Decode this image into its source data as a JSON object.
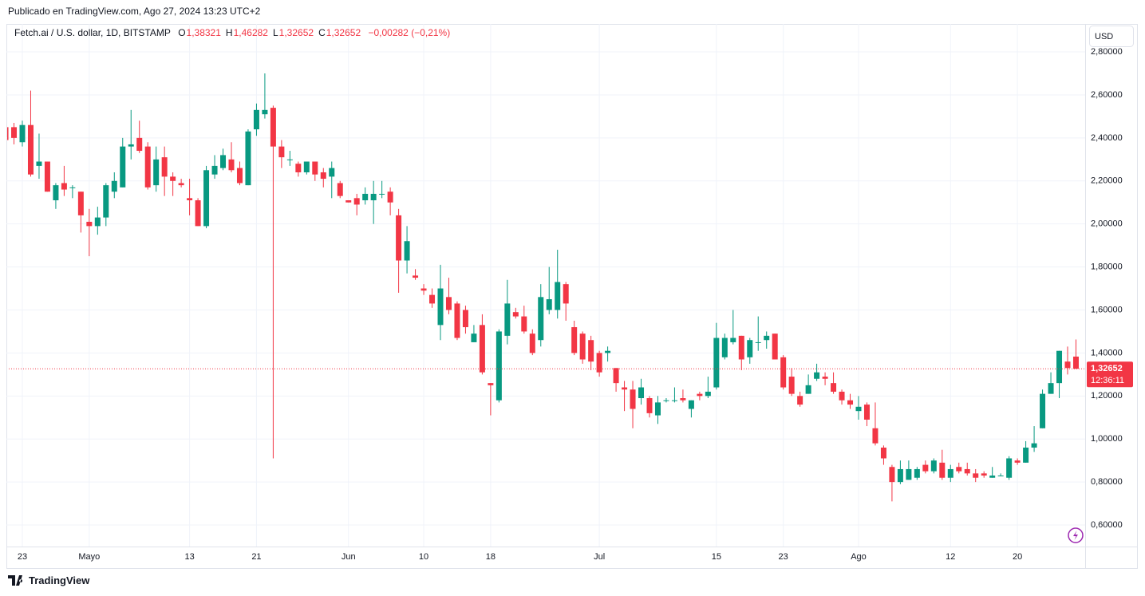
{
  "header": {
    "published": "Publicado en TradingView.com, Ago 27, 2024 13:23 UTC+2"
  },
  "footer": {
    "brand": "TradingView"
  },
  "chart_data": {
    "type": "candlestick",
    "title": "Fetch.ai / U.S. dollar, 1D, BITSTAMP",
    "ohlc_legend": [
      {
        "key": "O",
        "value": "1,38321"
      },
      {
        "key": "H",
        "value": "1,46282"
      },
      {
        "key": "L",
        "value": "1,32652"
      },
      {
        "key": "C",
        "value": "1,32652"
      }
    ],
    "change": "−0,00282 (−0,21%)",
    "currency": "USD",
    "last_price_label": "1,32652",
    "countdown": "12:36:11",
    "up_color": "#089981",
    "down_color": "#f23645",
    "grid": true,
    "ylim": [
      0.5,
      2.93
    ],
    "yticks": [
      {
        "value": 0.6,
        "label": "0,60000"
      },
      {
        "value": 0.8,
        "label": "0,80000"
      },
      {
        "value": 1.0,
        "label": "1,00000"
      },
      {
        "value": 1.2,
        "label": "1,20000"
      },
      {
        "value": 1.4,
        "label": "1,40000"
      },
      {
        "value": 1.6,
        "label": "1,60000"
      },
      {
        "value": 1.8,
        "label": "1,80000"
      },
      {
        "value": 2.0,
        "label": "2,00000"
      },
      {
        "value": 2.2,
        "label": "2,20000"
      },
      {
        "value": 2.4,
        "label": "2,40000"
      },
      {
        "value": 2.6,
        "label": "2,60000"
      },
      {
        "value": 2.8,
        "label": "2,80000"
      }
    ],
    "categories": [
      null,
      null,
      "23",
      null,
      null,
      null,
      null,
      null,
      null,
      null,
      "Mayo",
      null,
      null,
      null,
      null,
      null,
      null,
      null,
      null,
      null,
      null,
      null,
      "13",
      null,
      null,
      null,
      null,
      null,
      null,
      null,
      "21",
      null,
      null,
      null,
      null,
      null,
      null,
      null,
      null,
      null,
      null,
      "Jun",
      null,
      null,
      null,
      null,
      null,
      null,
      null,
      null,
      "10",
      null,
      null,
      null,
      null,
      null,
      null,
      null,
      "18",
      null,
      null,
      null,
      null,
      null,
      null,
      null,
      null,
      null,
      null,
      null,
      null,
      "Jul",
      null,
      null,
      null,
      null,
      null,
      null,
      null,
      null,
      null,
      null,
      null,
      null,
      null,
      "15",
      null,
      null,
      null,
      null,
      null,
      null,
      null,
      "23",
      null,
      null,
      null,
      null,
      null,
      null,
      null,
      null,
      "Ago",
      null,
      null,
      null,
      null,
      null,
      null,
      null,
      null,
      null,
      null,
      "12",
      null,
      null,
      null,
      null,
      null,
      null,
      null,
      "20",
      null,
      null,
      null,
      null,
      null,
      null,
      null
    ],
    "open": [
      2.45,
      2.45,
      2.38,
      2.46,
      2.27,
      2.29,
      2.11,
      2.19,
      2.17,
      2.15,
      2.01,
      1.99,
      2.03,
      2.15,
      2.17,
      2.36,
      2.4,
      2.36,
      2.18,
      2.31,
      2.22,
      2.19,
      2.12,
      2.11,
      1.99,
      2.23,
      2.26,
      2.3,
      2.26,
      2.18,
      2.44,
      2.51,
      2.54,
      2.36,
      2.3,
      2.28,
      2.24,
      2.29,
      2.24,
      2.22,
      2.19,
      2.11,
      2.12,
      2.11,
      2.11,
      2.14,
      2.15,
      2.04,
      1.83,
      1.76,
      1.7,
      1.67,
      1.53,
      1.66,
      1.63,
      1.6,
      1.45,
      1.53,
      1.26,
      1.18,
      1.48,
      1.59,
      1.57,
      1.49,
      1.46,
      1.6,
      1.6,
      1.72,
      1.52,
      1.49,
      1.46,
      1.4,
      1.4,
      1.33,
      1.24,
      1.23,
      1.19,
      1.19,
      1.11,
      1.18,
      1.18,
      1.19,
      1.14,
      1.21,
      1.2,
      1.24,
      1.38,
      1.45,
      1.48,
      1.38,
      1.45,
      1.46,
      1.49,
      1.38,
      1.29,
      1.2,
      1.21,
      1.28,
      1.29,
      1.26,
      1.22,
      1.18,
      1.13,
      1.16,
      1.05,
      0.96,
      0.87,
      0.8,
      0.81,
      0.82,
      0.88,
      0.85,
      0.89,
      0.82,
      0.87,
      0.86,
      0.84,
      0.84,
      0.82,
      0.83,
      0.82,
      0.9,
      0.89,
      0.96,
      1.05,
      1.21,
      1.26,
      1.36,
      1.38321
    ],
    "high": [
      2.48,
      2.47,
      2.48,
      2.62,
      2.42,
      2.29,
      2.19,
      2.27,
      2.18,
      2.15,
      2.07,
      2.08,
      2.19,
      2.24,
      2.4,
      2.53,
      2.48,
      2.38,
      2.36,
      2.36,
      2.24,
      2.21,
      2.21,
      2.12,
      2.27,
      2.32,
      2.35,
      2.38,
      2.29,
      2.44,
      2.56,
      2.7,
      2.55,
      2.39,
      2.34,
      2.29,
      2.29,
      2.29,
      2.26,
      2.29,
      2.2,
      2.11,
      2.14,
      2.17,
      2.2,
      2.2,
      2.17,
      2.07,
      1.99,
      1.79,
      1.72,
      1.7,
      1.81,
      1.75,
      1.64,
      1.62,
      1.53,
      1.58,
      1.26,
      1.51,
      1.74,
      1.61,
      1.62,
      1.51,
      1.72,
      1.8,
      1.88,
      1.73,
      1.55,
      1.5,
      1.48,
      1.41,
      1.43,
      1.33,
      1.27,
      1.27,
      1.28,
      1.2,
      1.2,
      1.19,
      1.24,
      1.23,
      1.18,
      1.22,
      1.29,
      1.54,
      1.49,
      1.6,
      1.48,
      1.47,
      1.57,
      1.5,
      1.49,
      1.39,
      1.33,
      1.22,
      1.3,
      1.35,
      1.31,
      1.31,
      1.23,
      1.21,
      1.2,
      1.17,
      1.17,
      0.97,
      0.88,
      0.9,
      0.9,
      0.87,
      0.9,
      0.91,
      0.95,
      0.88,
      0.89,
      0.89,
      0.86,
      0.85,
      0.87,
      0.84,
      0.92,
      0.91,
      0.99,
      1.06,
      1.23,
      1.31,
      1.41,
      1.43,
      1.46282
    ],
    "low": [
      2.36,
      2.37,
      2.36,
      2.22,
      2.21,
      2.15,
      2.07,
      2.13,
      2.12,
      1.96,
      1.85,
      1.95,
      1.99,
      2.12,
      2.17,
      2.3,
      2.33,
      2.16,
      2.15,
      2.13,
      2.13,
      2.17,
      2.04,
      1.99,
      1.98,
      2.21,
      2.25,
      2.24,
      2.18,
      2.18,
      2.41,
      2.49,
      0.91,
      2.26,
      2.27,
      2.22,
      2.23,
      2.2,
      2.17,
      2.12,
      2.12,
      2.1,
      2.04,
      2.09,
      2.0,
      2.12,
      2.04,
      1.68,
      1.77,
      1.74,
      1.67,
      1.61,
      1.46,
      1.58,
      1.46,
      1.49,
      1.45,
      1.3,
      1.11,
      1.17,
      1.44,
      1.56,
      1.49,
      1.39,
      1.43,
      1.58,
      1.56,
      1.55,
      1.39,
      1.35,
      1.32,
      1.29,
      1.36,
      1.22,
      1.13,
      1.05,
      1.16,
      1.1,
      1.07,
      1.17,
      1.17,
      1.17,
      1.1,
      1.18,
      1.19,
      1.23,
      1.37,
      1.44,
      1.32,
      1.35,
      1.41,
      1.42,
      1.37,
      1.23,
      1.2,
      1.15,
      1.21,
      1.27,
      1.25,
      1.21,
      1.16,
      1.14,
      1.09,
      1.06,
      0.97,
      0.88,
      0.71,
      0.79,
      0.81,
      0.81,
      0.84,
      0.84,
      0.81,
      0.8,
      0.84,
      0.83,
      0.8,
      0.82,
      0.82,
      0.83,
      0.81,
      0.88,
      0.89,
      0.94,
      1.05,
      1.21,
      1.19,
      1.3,
      1.32652
    ],
    "close": [
      2.39,
      2.4,
      2.46,
      2.23,
      2.29,
      2.15,
      2.18,
      2.16,
      2.17,
      2.04,
      1.99,
      2.03,
      2.18,
      2.2,
      2.36,
      2.37,
      2.34,
      2.17,
      2.3,
      2.22,
      2.2,
      2.18,
      2.11,
      1.99,
      2.25,
      2.27,
      2.32,
      2.25,
      2.19,
      2.43,
      2.53,
      2.53,
      2.36,
      2.31,
      2.3,
      2.24,
      2.29,
      2.23,
      2.21,
      2.26,
      2.13,
      2.1,
      2.09,
      2.14,
      2.14,
      2.14,
      2.1,
      1.83,
      1.92,
      1.75,
      1.69,
      1.63,
      1.7,
      1.6,
      1.47,
      1.52,
      1.49,
      1.31,
      1.25,
      1.5,
      1.63,
      1.57,
      1.5,
      1.4,
      1.66,
      1.65,
      1.73,
      1.63,
      1.4,
      1.37,
      1.36,
      1.31,
      1.41,
      1.26,
      1.23,
      1.14,
      1.24,
      1.12,
      1.17,
      1.18,
      1.18,
      1.18,
      1.18,
      1.2,
      1.22,
      1.47,
      1.47,
      1.47,
      1.37,
      1.46,
      1.45,
      1.48,
      1.37,
      1.24,
      1.21,
      1.16,
      1.25,
      1.31,
      1.28,
      1.22,
      1.18,
      1.16,
      1.15,
      1.09,
      0.98,
      0.91,
      0.8,
      0.86,
      0.86,
      0.86,
      0.85,
      0.9,
      0.82,
      0.86,
      0.85,
      0.84,
      0.82,
      0.83,
      0.83,
      0.83,
      0.91,
      0.89,
      0.96,
      0.98,
      1.21,
      1.26,
      1.41,
      1.33,
      1.32652
    ]
  }
}
